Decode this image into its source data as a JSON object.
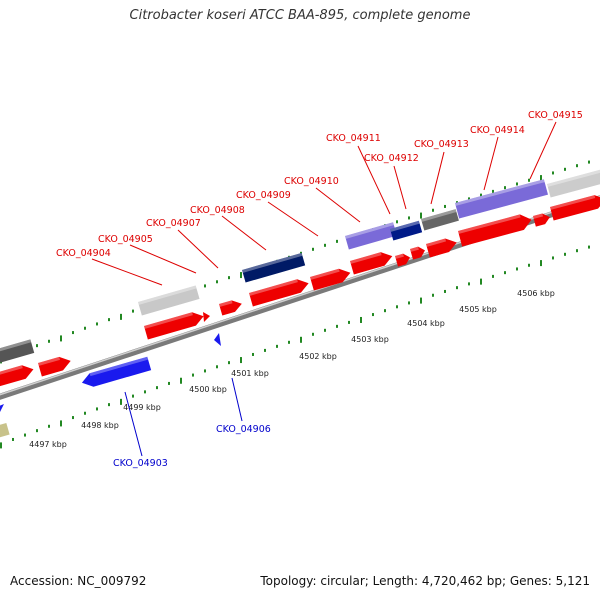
{
  "title": "Citrobacter koseri ATCC BAA-895, complete genome",
  "footer": {
    "accession": "Accession: NC_009792",
    "summary": "Topology: circular; Length: 4,720,462 bp; Genes: 5,121"
  },
  "colors": {
    "forward_label": "#dd0000",
    "reverse_label": "#0000cc",
    "tick_green": "#228822",
    "cds_red": "#ee0000",
    "cds_blue": "#1a1aee",
    "backbone_gray": "#888888"
  },
  "tick_labels": [
    "4497 kbp",
    "4498 kbp",
    "4499 kbp",
    "4500 kbp",
    "4501 kbp",
    "4502 kbp",
    "4503 kbp",
    "4504 kbp",
    "4505 kbp",
    "4506 kbp"
  ],
  "forward_genes": [
    "CKO_04904",
    "CKO_04905",
    "CKO_04907",
    "CKO_04908",
    "CKO_04909",
    "CKO_04910",
    "CKO_04911",
    "CKO_04912",
    "CKO_04913",
    "CKO_04914",
    "CKO_04915"
  ],
  "reverse_genes": [
    "CKO_04903",
    "CKO_04906"
  ]
}
